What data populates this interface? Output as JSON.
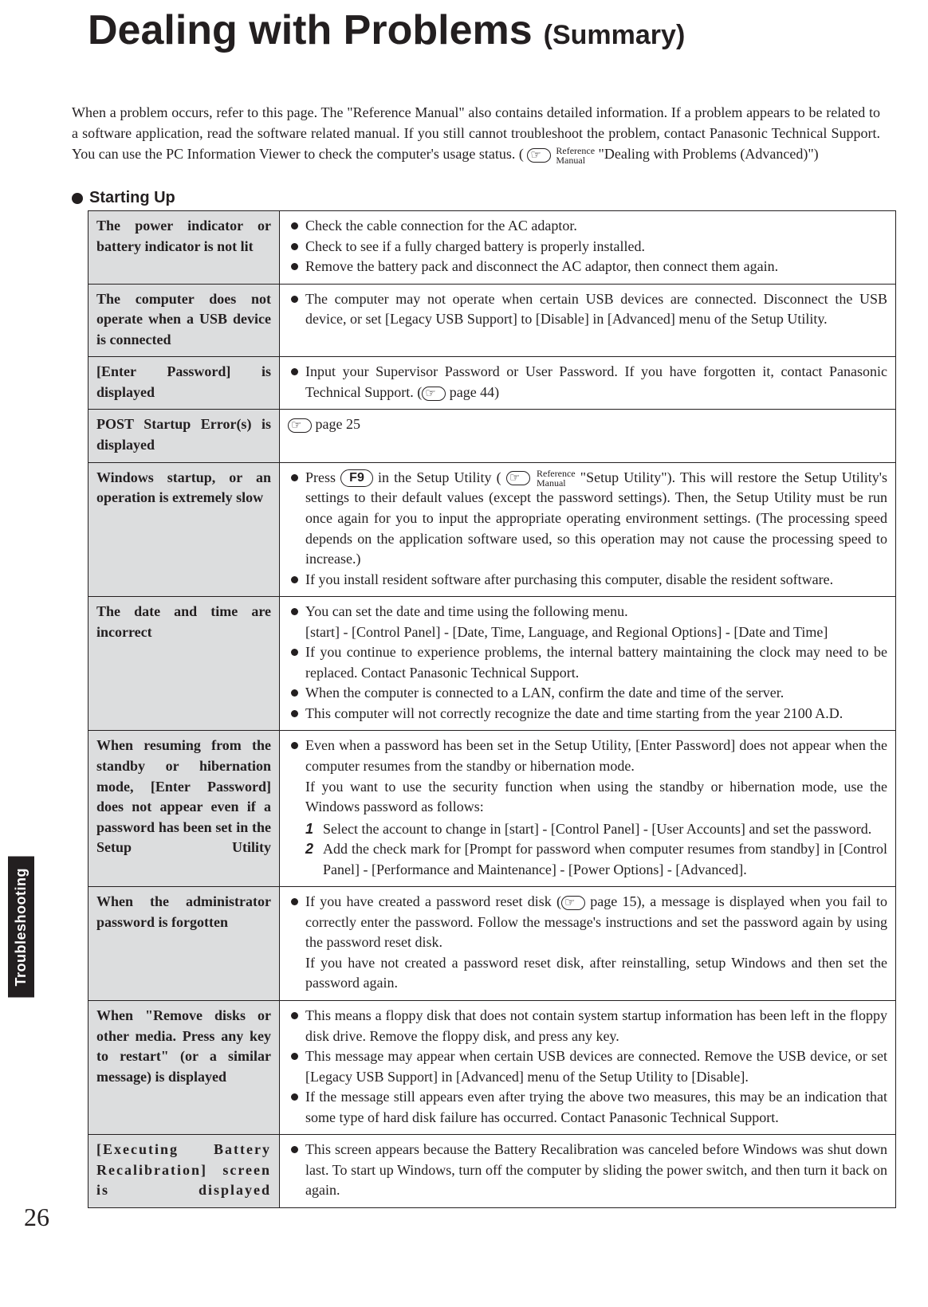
{
  "title_main": "Dealing with Problems",
  "title_sub": "(Summary)",
  "intro_a": "When a problem occurs, refer to this page.  The \"Reference Manual\" also contains detailed information.  If a problem appears to be related to a software application, read the software related manual.  If you still cannot troubleshoot the problem, contact Panasonic Technical Support. You can use the PC Information Viewer to check the computer's usage status. (",
  "intro_b": " \"Dealing with Problems (Advanced)\")",
  "ref_label_line1": "Reference",
  "ref_label_line2": "Manual",
  "section_heading": "Starting Up",
  "side_tab": "Troubleshooting",
  "page_number": "26",
  "rows": {
    "r0": {
      "problem": "The power indicator or battery indicator is not lit",
      "b1": "Check the cable connection for the AC adaptor.",
      "b2": "Check to see if a fully charged battery is properly installed.",
      "b3": "Remove the battery pack and disconnect the AC adaptor, then connect them again."
    },
    "r1": {
      "problem": "The computer does not operate when a USB device is connected",
      "b1": "The computer may not operate when certain USB devices are connected.  Disconnect the USB device, or set [Legacy USB Support] to [Disable] in [Advanced] menu of the Setup Utility."
    },
    "r2": {
      "problem": "[Enter Password] is displayed",
      "b1a": "Input your Supervisor Password or User Password. If you have forgotten it, contact Panasonic Technical Support. (",
      "b1b": " page 44)"
    },
    "r3": {
      "problem": "POST Startup Error(s) is displayed",
      "text": " page 25"
    },
    "r4": {
      "problem": "Windows startup, or an operation is extremely slow",
      "b1a": "Press ",
      "key": "F9",
      "b1b": " in the Setup Utility (",
      "b1c": " \"Setup Utility\").   This will restore the Setup Utility's settings to their default values (except the password settings).  Then, the Setup Utility must be run once again for you to input the appropriate operating environment settings.  (The processing speed depends on the application software used, so this operation may not cause the processing speed to increase.)",
      "b2": "If you install resident software after purchasing this computer, disable the resident software."
    },
    "r5": {
      "problem": "The date and time are incorrect",
      "b1": "You can set the date and time using the following menu.",
      "b1sub": "[start] - [Control Panel] - [Date, Time, Language, and Regional Options] - [Date and Time]",
      "b2": "If you continue to experience problems, the internal battery maintaining the clock may need to be replaced.  Contact Panasonic Technical Support.",
      "b3": "When the computer is connected to a LAN, confirm the date and time of the server.",
      "b4": "This computer will not correctly recognize the date and time starting from the year 2100 A.D."
    },
    "r6": {
      "problem": "When resuming from the standby or hibernation mode, [Enter Password] does not appear even if a password has been set in the Setup Utility",
      "b1": "Even when a password has been set in the Setup Utility, [Enter Password] does not appear when the computer resumes from the standby or hibernation mode.",
      "sub1": "If you want to use the security function when using the standby or hibernation mode, use the Windows password as follows:",
      "s1": "Select the account to change in [start] - [Control Panel] - [User Accounts] and set the password.",
      "s2": "Add the check mark for [Prompt for password when computer resumes from standby] in [Control Panel] - [Performance and Maintenance] - [Power Options] - [Advanced]."
    },
    "r7": {
      "problem": "When the administrator password is forgotten",
      "b1a": "If you have created a password reset disk (",
      "b1b": " page 15), a message is displayed when you fail to correctly enter the password. Follow the message's instructions and set the password again by using the password reset disk.",
      "sub1": "If you have not created a password reset disk, after reinstalling, setup Windows and then set the password again."
    },
    "r8": {
      "problem": "When \"Remove disks or other media. Press any key to restart\" (or a similar message) is displayed",
      "b1": "This means a floppy disk that does not contain system startup information has been left in the floppy disk drive. Remove the floppy disk, and press any key.",
      "b2": "This message may appear when certain USB devices are connected. Remove the USB device, or set [Legacy USB Support] in [Advanced] menu of the Setup Utility to [Disable].",
      "b3": "If the message still appears even after trying the above two measures, this may be an indication that some type of hard disk failure has occurred. Contact Panasonic Technical Support."
    },
    "r9": {
      "problem": "[Executing Battery Recalibration] screen is displayed",
      "b1": "This screen appears because the Battery Recalibration was canceled before Windows was shut down last. To start up Windows, turn off the computer by sliding the power switch, and then turn it back on again."
    }
  }
}
